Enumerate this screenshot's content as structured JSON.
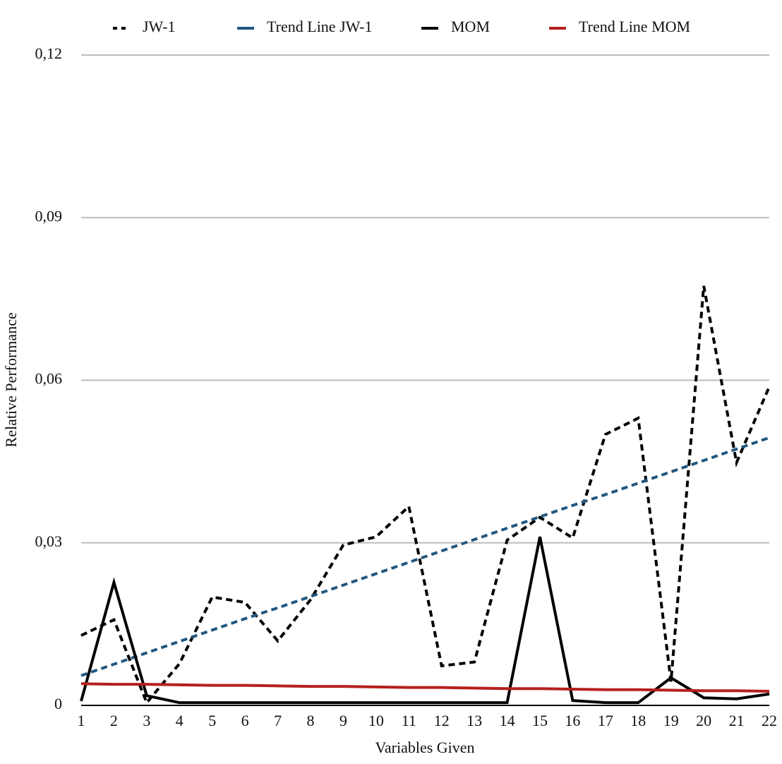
{
  "chart_data": {
    "type": "line",
    "x_label": "Variables Given",
    "y_label": "Relative Performance",
    "categories": [
      "1",
      "2",
      "3",
      "4",
      "5",
      "6",
      "7",
      "8",
      "9",
      "10",
      "11",
      "12",
      "13",
      "14",
      "15",
      "16",
      "17",
      "18",
      "19",
      "20",
      "21",
      "22"
    ],
    "series": [
      {
        "name": "JW-1",
        "color": "#000000",
        "dashed": true,
        "values": [
          0.0129,
          0.0158,
          0.0005,
          0.0077,
          0.02,
          0.019,
          0.0119,
          0.0195,
          0.0296,
          0.0311,
          0.0367,
          0.0073,
          0.008,
          0.0305,
          0.0347,
          0.0309,
          0.05,
          0.053,
          0.0044,
          0.0774,
          0.0448,
          0.0588
        ]
      },
      {
        "name": "Trend Line JW-1",
        "color": "#22577f",
        "dashed": true,
        "values": [
          0.0055,
          0.0076,
          0.0097,
          0.0118,
          0.0139,
          0.016,
          0.018,
          0.0201,
          0.0222,
          0.0243,
          0.0264,
          0.0285,
          0.0306,
          0.0327,
          0.0348,
          0.0369,
          0.0389,
          0.041,
          0.0431,
          0.0452,
          0.0473,
          0.0494
        ]
      },
      {
        "name": "MOM",
        "color": "#000000",
        "dashed": false,
        "values": [
          0.0008,
          0.0227,
          0.0018,
          0.0005,
          0.0005,
          0.0005,
          0.0005,
          0.0005,
          0.0005,
          0.0005,
          0.0005,
          0.0005,
          0.0005,
          0.0005,
          0.0311,
          0.0009,
          0.0005,
          0.0005,
          0.0051,
          0.0014,
          0.0012,
          0.0021
        ]
      },
      {
        "name": "Trend Line MOM",
        "color": "#b5201d",
        "dashed": false,
        "values": [
          0.004,
          0.0039,
          0.0039,
          0.0038,
          0.0037,
          0.0037,
          0.0036,
          0.0035,
          0.0035,
          0.0034,
          0.0033,
          0.0033,
          0.0032,
          0.0031,
          0.0031,
          0.003,
          0.0029,
          0.0029,
          0.0028,
          0.0027,
          0.0027,
          0.0026
        ]
      }
    ],
    "ylim": [
      0,
      0.12
    ],
    "yticks": [
      0,
      {
        "value": 0.03,
        "label": "0,03"
      },
      {
        "value": 0.06,
        "label": "0,06"
      },
      {
        "value": 0.09,
        "label": "0,09"
      },
      {
        "value": 0.12,
        "label": "0,12"
      }
    ],
    "grid": true,
    "legend": "top"
  }
}
